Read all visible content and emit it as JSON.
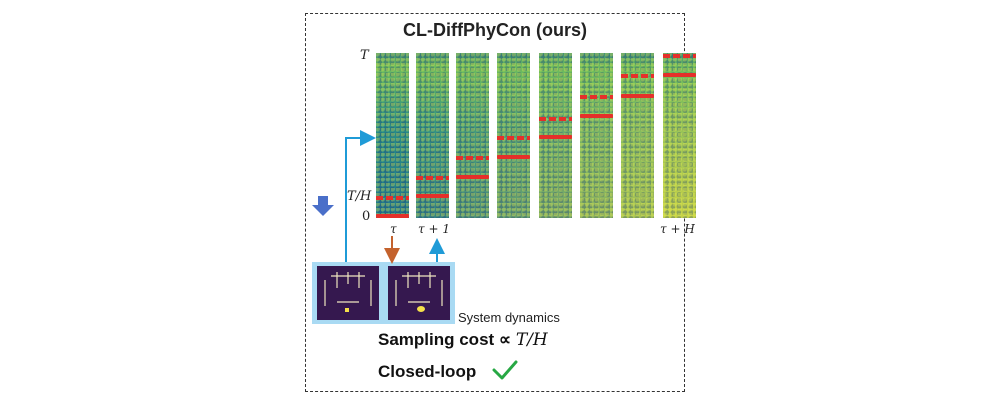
{
  "title": "CL-DiffPhyCon (ours)",
  "y_axis": {
    "top": "T",
    "mid": "T/H",
    "bottom": "0"
  },
  "x_ticks": {
    "first": "τ",
    "second": "τ + 1",
    "last": "τ + H"
  },
  "columns": [
    {
      "id": 1,
      "noise": 1.0
    },
    {
      "id": 2,
      "noise": 0.9
    },
    {
      "id": 3,
      "noise": 0.78
    },
    {
      "id": 4,
      "noise": 0.66
    },
    {
      "id": 5,
      "noise": 0.54
    },
    {
      "id": 6,
      "noise": 0.42
    },
    {
      "id": 7,
      "noise": 0.3
    },
    {
      "id": 8,
      "noise": 0.15
    }
  ],
  "dynamics_label": "System dynamics",
  "sampling_cost": {
    "text": "Sampling cost",
    "symbol": "∝",
    "math": "T/H"
  },
  "closed_loop": "Closed-loop",
  "colors": {
    "red": "#e5302a",
    "blue_arrow": "#1f9bd7",
    "orange_arrow": "#c4622d",
    "down_arrow": "#4a6fc9",
    "check": "#27a844",
    "env_bg": "#35184f"
  }
}
